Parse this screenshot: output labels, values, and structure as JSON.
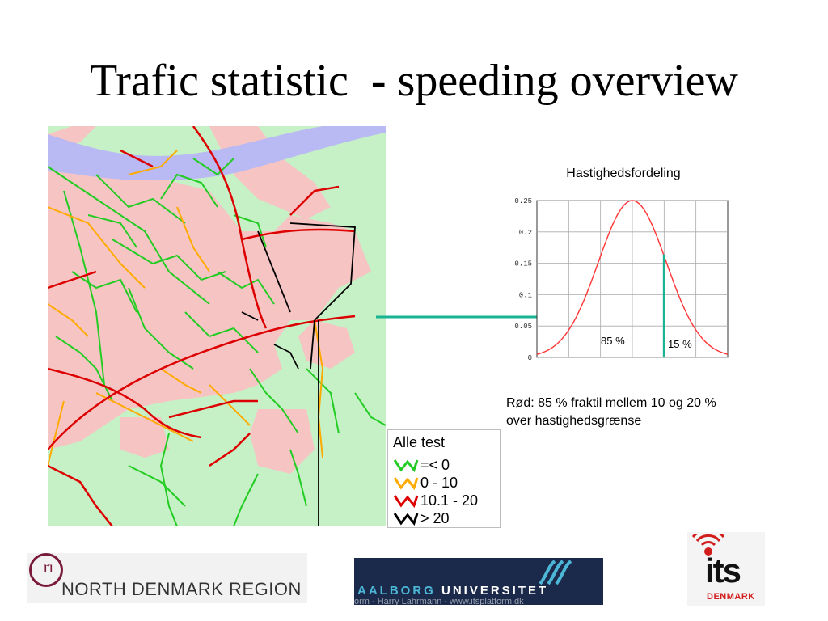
{
  "slide": {
    "title": "Trafic statistic  - speeding overview"
  },
  "map": {
    "colors": {
      "water": "#b9b9f4",
      "urban": "#f7c4c4",
      "rural": "#c6f0c6"
    },
    "legend": {
      "title": "Alle test",
      "items": [
        {
          "label": "=< 0",
          "color": "#22cc22"
        },
        {
          "label": "0 - 10",
          "color": "#ffaa00"
        },
        {
          "label": "10.1 - 20",
          "color": "#dd0000"
        },
        {
          "label": "> 20",
          "color": "#000000"
        }
      ]
    }
  },
  "callout_color": "#1ab394",
  "chart_data": {
    "type": "line",
    "title": "Hastighedsfordeling",
    "xlabel": "",
    "ylabel": "",
    "ylim": [
      0,
      0.25
    ],
    "y_ticks": [
      "0",
      "0.05",
      "0.1",
      "0.15",
      "0.2",
      "0.25"
    ],
    "grid": true,
    "series": [
      {
        "x": [
          0,
          0.5,
          1,
          1.5,
          2,
          2.5,
          3,
          3.5,
          4,
          4.5,
          5,
          5.5,
          6
        ],
        "values": [
          0.002,
          0.008,
          0.027,
          0.068,
          0.13,
          0.2,
          0.25,
          0.2,
          0.13,
          0.068,
          0.027,
          0.008,
          0.002
        ],
        "color": "#ff3333"
      }
    ],
    "marker": {
      "x": 4.0,
      "color": "#1ab394"
    },
    "annotations": [
      "85 %",
      "15 %"
    ]
  },
  "caption": {
    "line1": "Rød: 85 % fraktil mellem 10 og 20 %",
    "line2": "over hastighedsgrænse"
  },
  "logos": {
    "north_denmark": {
      "text": "NORTH DENMARK REGION",
      "glyph": "rı"
    },
    "aalborg": {
      "text_colored": "AALBORG",
      "text_plain": " UNIVERSITET",
      "footer": "orm - Harry Lahrmann - www.itsplatform.dk"
    },
    "its": {
      "text": "its",
      "sub": "DENMARK"
    }
  }
}
